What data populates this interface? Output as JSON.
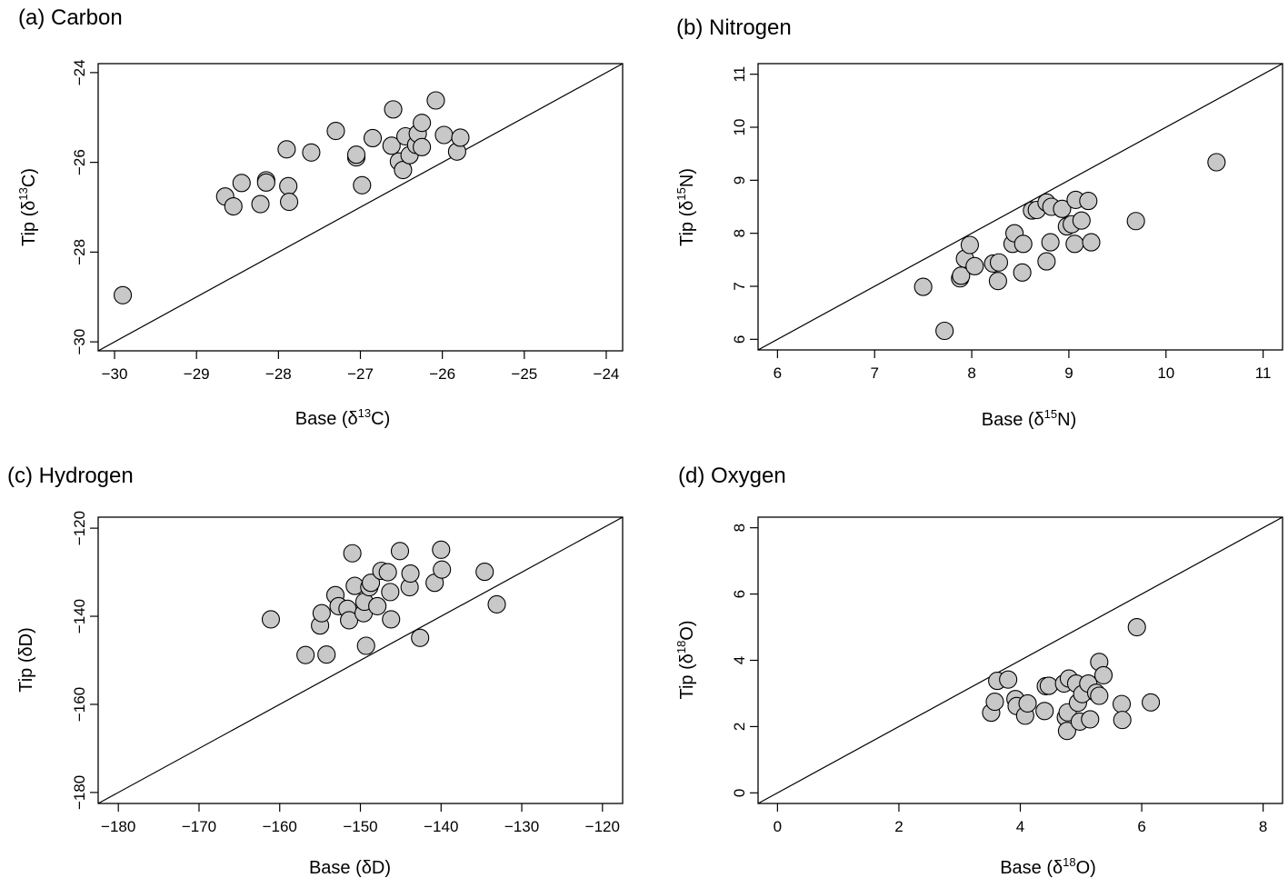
{
  "chart_data": [
    {
      "type": "scatter",
      "title": "(a) Carbon",
      "xlabel": {
        "pre": "Base (δ",
        "sup": "13",
        "post": "C)"
      },
      "ylabel": {
        "pre": "Tip (δ",
        "sup": "13",
        "post": "C)"
      },
      "xlim": [
        -30.2,
        -23.8
      ],
      "ylim": [
        -30.2,
        -23.8
      ],
      "xticks": [
        -30,
        -29,
        -28,
        -27,
        -26,
        -25,
        -24
      ],
      "xtick_labels": [
        "−30",
        "−29",
        "−28",
        "−27",
        "−26",
        "−25",
        "−24"
      ],
      "yticks": [
        -30,
        -28,
        -26,
        -24
      ],
      "ytick_labels": [
        "−30",
        "−28",
        "−26",
        "−24"
      ],
      "reference_line": "y = x",
      "marker_color": "#c8c8c8",
      "points": [
        {
          "x": -29.9,
          "y": -28.96
        },
        {
          "x": -28.65,
          "y": -26.76
        },
        {
          "x": -28.55,
          "y": -26.98
        },
        {
          "x": -28.45,
          "y": -26.46
        },
        {
          "x": -28.22,
          "y": -26.93
        },
        {
          "x": -28.15,
          "y": -26.4
        },
        {
          "x": -28.15,
          "y": -26.45
        },
        {
          "x": -27.9,
          "y": -25.71
        },
        {
          "x": -27.88,
          "y": -26.53
        },
        {
          "x": -27.87,
          "y": -26.88
        },
        {
          "x": -27.6,
          "y": -25.78
        },
        {
          "x": -27.3,
          "y": -25.3
        },
        {
          "x": -27.05,
          "y": -25.89
        },
        {
          "x": -27.05,
          "y": -25.83
        },
        {
          "x": -26.98,
          "y": -26.51
        },
        {
          "x": -26.85,
          "y": -25.46
        },
        {
          "x": -26.62,
          "y": -25.63
        },
        {
          "x": -26.6,
          "y": -24.82
        },
        {
          "x": -26.53,
          "y": -25.98
        },
        {
          "x": -26.48,
          "y": -26.17
        },
        {
          "x": -26.45,
          "y": -25.42
        },
        {
          "x": -26.4,
          "y": -25.84
        },
        {
          "x": -26.32,
          "y": -25.61
        },
        {
          "x": -26.3,
          "y": -25.36
        },
        {
          "x": -26.25,
          "y": -25.12
        },
        {
          "x": -26.25,
          "y": -25.66
        },
        {
          "x": -26.08,
          "y": -24.62
        },
        {
          "x": -25.98,
          "y": -25.39
        },
        {
          "x": -25.82,
          "y": -25.76
        },
        {
          "x": -25.78,
          "y": -25.45
        }
      ]
    },
    {
      "type": "scatter",
      "title": "(b) Nitrogen",
      "xlabel": {
        "pre": "Base (δ",
        "sup": "15",
        "post": "N)"
      },
      "ylabel": {
        "pre": "Tip (δ",
        "sup": "15",
        "post": "N)"
      },
      "xlim": [
        5.8,
        11.2
      ],
      "ylim": [
        5.8,
        11.2
      ],
      "xticks": [
        6,
        7,
        8,
        9,
        10,
        11
      ],
      "xtick_labels": [
        "6",
        "7",
        "8",
        "9",
        "10",
        "11"
      ],
      "yticks": [
        6,
        7,
        8,
        9,
        10,
        11
      ],
      "ytick_labels": [
        "6",
        "7",
        "8",
        "9",
        "10",
        "11"
      ],
      "reference_line": "y = x",
      "marker_color": "#c8c8c8",
      "points": [
        {
          "x": 7.5,
          "y": 6.99
        },
        {
          "x": 7.72,
          "y": 6.16
        },
        {
          "x": 7.88,
          "y": 7.15
        },
        {
          "x": 7.89,
          "y": 7.2
        },
        {
          "x": 7.93,
          "y": 7.52
        },
        {
          "x": 7.98,
          "y": 7.78
        },
        {
          "x": 8.03,
          "y": 7.38
        },
        {
          "x": 8.22,
          "y": 7.43
        },
        {
          "x": 8.27,
          "y": 7.1
        },
        {
          "x": 8.28,
          "y": 7.45
        },
        {
          "x": 8.42,
          "y": 7.8
        },
        {
          "x": 8.44,
          "y": 8.0
        },
        {
          "x": 8.52,
          "y": 7.26
        },
        {
          "x": 8.53,
          "y": 7.8
        },
        {
          "x": 8.62,
          "y": 8.43
        },
        {
          "x": 8.67,
          "y": 8.44
        },
        {
          "x": 8.77,
          "y": 7.47
        },
        {
          "x": 8.77,
          "y": 8.58
        },
        {
          "x": 8.81,
          "y": 7.83
        },
        {
          "x": 8.82,
          "y": 8.5
        },
        {
          "x": 8.93,
          "y": 8.46
        },
        {
          "x": 8.98,
          "y": 8.13
        },
        {
          "x": 9.03,
          "y": 8.17
        },
        {
          "x": 9.06,
          "y": 7.8
        },
        {
          "x": 9.07,
          "y": 8.63
        },
        {
          "x": 9.13,
          "y": 8.24
        },
        {
          "x": 9.2,
          "y": 8.61
        },
        {
          "x": 9.23,
          "y": 7.83
        },
        {
          "x": 9.69,
          "y": 8.23
        },
        {
          "x": 10.52,
          "y": 9.34
        }
      ]
    },
    {
      "type": "scatter",
      "title": "(c) Hydrogen",
      "xlabel": {
        "pre": "Base (δD)",
        "sup": "",
        "post": ""
      },
      "ylabel": {
        "pre": "Tip (δD)",
        "sup": "",
        "post": ""
      },
      "xlim": [
        -182.5,
        -117.5
      ],
      "ylim": [
        -182.5,
        -117.5
      ],
      "xticks": [
        -180,
        -170,
        -160,
        -150,
        -140,
        -130,
        -120
      ],
      "xtick_labels": [
        "−180",
        "−170",
        "−160",
        "−150",
        "−140",
        "−130",
        "−120"
      ],
      "yticks": [
        -180,
        -160,
        -140,
        -120
      ],
      "ytick_labels": [
        "−180",
        "−160",
        "−140",
        "−120"
      ],
      "reference_line": "y = x",
      "marker_color": "#c8c8c8",
      "points": [
        {
          "x": -161.1,
          "y": -140.7
        },
        {
          "x": -156.8,
          "y": -148.8
        },
        {
          "x": -155.0,
          "y": -142.1
        },
        {
          "x": -154.8,
          "y": -139.3
        },
        {
          "x": -154.2,
          "y": -148.7
        },
        {
          "x": -153.1,
          "y": -135.2
        },
        {
          "x": -152.7,
          "y": -137.7
        },
        {
          "x": -151.6,
          "y": -138.3
        },
        {
          "x": -151.4,
          "y": -140.9
        },
        {
          "x": -151.0,
          "y": -125.7
        },
        {
          "x": -150.7,
          "y": -133.1
        },
        {
          "x": -149.6,
          "y": -139.3
        },
        {
          "x": -149.5,
          "y": -136.7
        },
        {
          "x": -149.3,
          "y": -146.7
        },
        {
          "x": -148.9,
          "y": -133.4
        },
        {
          "x": -148.7,
          "y": -132.4
        },
        {
          "x": -147.9,
          "y": -137.7
        },
        {
          "x": -147.4,
          "y": -129.7
        },
        {
          "x": -146.6,
          "y": -130.0
        },
        {
          "x": -146.3,
          "y": -134.5
        },
        {
          "x": -146.2,
          "y": -140.7
        },
        {
          "x": -145.1,
          "y": -125.2
        },
        {
          "x": -143.9,
          "y": -133.4
        },
        {
          "x": -143.8,
          "y": -130.3
        },
        {
          "x": -142.6,
          "y": -144.9
        },
        {
          "x": -140.8,
          "y": -132.4
        },
        {
          "x": -140.0,
          "y": -124.9
        },
        {
          "x": -139.9,
          "y": -129.4
        },
        {
          "x": -134.6,
          "y": -129.9
        },
        {
          "x": -133.1,
          "y": -137.3
        }
      ]
    },
    {
      "type": "scatter",
      "title": "(d) Oxygen",
      "xlabel": {
        "pre": "Base (δ",
        "sup": "18",
        "post": "O)"
      },
      "ylabel": {
        "pre": "Tip (δ",
        "sup": "18",
        "post": "O)"
      },
      "xlim": [
        -0.32,
        8.32
      ],
      "ylim": [
        -0.32,
        8.32
      ],
      "xticks": [
        0,
        2,
        4,
        6,
        8
      ],
      "xtick_labels": [
        "0",
        "2",
        "4",
        "6",
        "8"
      ],
      "yticks": [
        0,
        2,
        4,
        6,
        8
      ],
      "ytick_labels": [
        "0",
        "2",
        "4",
        "6",
        "8"
      ],
      "reference_line": "y = x",
      "marker_color": "#c8c8c8",
      "points": [
        {
          "x": 3.52,
          "y": 2.42
        },
        {
          "x": 3.58,
          "y": 2.75
        },
        {
          "x": 3.62,
          "y": 3.38
        },
        {
          "x": 3.8,
          "y": 3.42
        },
        {
          "x": 3.92,
          "y": 2.83
        },
        {
          "x": 3.94,
          "y": 2.62
        },
        {
          "x": 4.08,
          "y": 2.33
        },
        {
          "x": 4.12,
          "y": 2.7
        },
        {
          "x": 4.4,
          "y": 2.47
        },
        {
          "x": 4.42,
          "y": 3.22
        },
        {
          "x": 4.47,
          "y": 3.23
        },
        {
          "x": 4.72,
          "y": 3.3
        },
        {
          "x": 4.75,
          "y": 2.28
        },
        {
          "x": 4.77,
          "y": 1.87
        },
        {
          "x": 4.78,
          "y": 2.43
        },
        {
          "x": 4.8,
          "y": 3.45
        },
        {
          "x": 4.92,
          "y": 3.3
        },
        {
          "x": 4.95,
          "y": 2.72
        },
        {
          "x": 4.98,
          "y": 2.15
        },
        {
          "x": 5.02,
          "y": 2.98
        },
        {
          "x": 5.12,
          "y": 3.3
        },
        {
          "x": 5.15,
          "y": 2.22
        },
        {
          "x": 5.25,
          "y": 3.02
        },
        {
          "x": 5.3,
          "y": 2.93
        },
        {
          "x": 5.3,
          "y": 3.95
        },
        {
          "x": 5.37,
          "y": 3.55
        },
        {
          "x": 5.67,
          "y": 2.68
        },
        {
          "x": 5.68,
          "y": 2.2
        },
        {
          "x": 5.92,
          "y": 5.0
        },
        {
          "x": 6.15,
          "y": 2.73
        }
      ]
    }
  ]
}
